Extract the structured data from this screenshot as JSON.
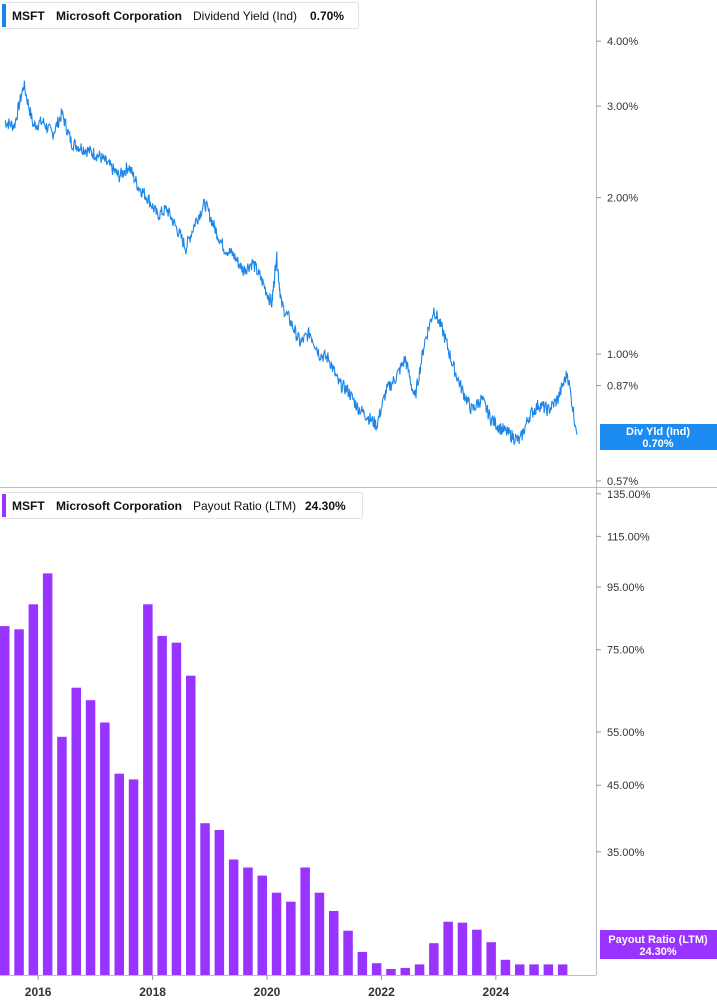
{
  "colors": {
    "yield_line": "#1c86e8",
    "payout_bar": "#9933ff",
    "yield_marker_bg": "#1c8cf0",
    "payout_marker_bg": "#9933ff"
  },
  "top_panel": {
    "legend": {
      "ticker": "MSFT",
      "company": "Microsoft Corporation",
      "metric": "Dividend Yield (Ind)",
      "value": "0.70%"
    },
    "marker": {
      "label": "Div Yld (Ind)",
      "value": "0.70%"
    }
  },
  "bottom_panel": {
    "legend": {
      "ticker": "MSFT",
      "company": "Microsoft Corporation",
      "metric": "Payout Ratio (LTM)",
      "value": "24.30%"
    },
    "marker": {
      "label": "Payout Ratio (LTM)",
      "value": "24.30%"
    }
  },
  "chart_data": [
    {
      "type": "line",
      "scale": "log",
      "ylim": [
        0.555,
        4.8
      ],
      "xlim": [
        "2015-05",
        "2025-10"
      ],
      "y_ticks": [
        {
          "value": 4.0,
          "label": "4.00%"
        },
        {
          "value": 3.0,
          "label": "3.00%"
        },
        {
          "value": 2.0,
          "label": "2.00%"
        },
        {
          "value": 1.0,
          "label": "1.00%"
        },
        {
          "value": 0.87,
          "label": "0.87%"
        },
        {
          "value": 0.57,
          "label": "0.57%"
        }
      ],
      "series": [
        {
          "x": [
            "2015-06",
            "2015-08",
            "2015-10",
            "2015-12",
            "2016-02",
            "2016-04",
            "2016-06",
            "2016-08",
            "2016-10",
            "2016-12",
            "2017-02",
            "2017-04",
            "2017-06",
            "2017-08",
            "2017-10",
            "2017-12",
            "2018-02",
            "2018-04",
            "2018-06",
            "2018-08",
            "2018-10",
            "2018-12",
            "2019-02",
            "2019-04",
            "2019-06",
            "2019-08",
            "2019-10",
            "2019-12",
            "2020-02",
            "2020-03",
            "2020-04",
            "2020-06",
            "2020-08",
            "2020-10",
            "2020-12",
            "2021-02",
            "2021-04",
            "2021-06",
            "2021-08",
            "2021-10",
            "2021-12",
            "2022-02",
            "2022-04",
            "2022-06",
            "2022-08",
            "2022-10",
            "2022-12",
            "2023-02",
            "2023-04",
            "2023-06",
            "2023-08",
            "2023-10",
            "2023-12",
            "2024-02",
            "2024-04",
            "2024-06",
            "2024-08",
            "2024-10",
            "2024-12",
            "2025-02",
            "2025-04",
            "2025-06"
          ],
          "y": [
            2.8,
            2.75,
            3.3,
            2.75,
            2.8,
            2.65,
            2.9,
            2.55,
            2.5,
            2.45,
            2.4,
            2.3,
            2.2,
            2.3,
            2.1,
            2.0,
            1.85,
            1.9,
            1.75,
            1.6,
            1.8,
            1.95,
            1.75,
            1.6,
            1.55,
            1.45,
            1.5,
            1.38,
            1.25,
            1.55,
            1.25,
            1.15,
            1.05,
            1.1,
            1.0,
            0.98,
            0.88,
            0.85,
            0.79,
            0.76,
            0.73,
            0.85,
            0.9,
            0.98,
            0.82,
            1.05,
            1.22,
            1.1,
            0.95,
            0.85,
            0.78,
            0.82,
            0.75,
            0.72,
            0.7,
            0.68,
            0.76,
            0.8,
            0.78,
            0.82,
            0.92,
            0.7
          ]
        }
      ],
      "last_value": 0.7
    },
    {
      "type": "bar",
      "scale": "log",
      "ylim": [
        22.0,
        138.0
      ],
      "xlim": [
        "2015-05",
        "2025-10"
      ],
      "y_ticks": [
        {
          "value": 135,
          "label": "135.00%"
        },
        {
          "value": 115,
          "label": "115.00%"
        },
        {
          "value": 95,
          "label": "95.00%"
        },
        {
          "value": 75,
          "label": "75.00%"
        },
        {
          "value": 55,
          "label": "55.00%"
        },
        {
          "value": 45,
          "label": "45.00%"
        },
        {
          "value": 35,
          "label": "35.00%"
        }
      ],
      "x_ticks": [
        {
          "date": "2016-01",
          "label": "2016"
        },
        {
          "date": "2018-01",
          "label": "2018"
        },
        {
          "date": "2020-01",
          "label": "2020"
        },
        {
          "date": "2022-01",
          "label": "2022"
        },
        {
          "date": "2024-01",
          "label": "2024"
        }
      ],
      "x": [
        "2015-06",
        "2015-09",
        "2015-12",
        "2016-03",
        "2016-06",
        "2016-09",
        "2016-12",
        "2017-03",
        "2017-06",
        "2017-09",
        "2017-12",
        "2018-03",
        "2018-06",
        "2018-09",
        "2018-12",
        "2019-03",
        "2019-06",
        "2019-09",
        "2019-12",
        "2020-03",
        "2020-06",
        "2020-09",
        "2020-12",
        "2021-03",
        "2021-06",
        "2021-09",
        "2021-12",
        "2022-03",
        "2022-06",
        "2022-09",
        "2022-12",
        "2023-03",
        "2023-06",
        "2023-09",
        "2023-12",
        "2024-03",
        "2024-06",
        "2024-09",
        "2024-12",
        "2025-03"
      ],
      "values": [
        82,
        81,
        89,
        100,
        54,
        65,
        62,
        57,
        47,
        46,
        89,
        79,
        77,
        68,
        39,
        38,
        34,
        33,
        32,
        30,
        29,
        33,
        30,
        28,
        26,
        24,
        23,
        22.5,
        22.6,
        22.9,
        24.8,
        26.9,
        26.8,
        26.1,
        24.9,
        23.3,
        22.9,
        22.9,
        22.9,
        22.9
      ],
      "last_value": 24.3
    }
  ]
}
